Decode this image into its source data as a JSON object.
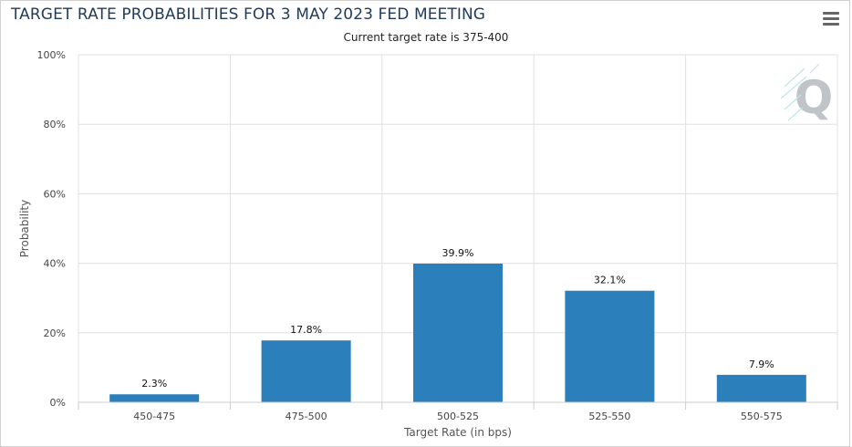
{
  "header": {
    "title": "TARGET RATE PROBABILITIES FOR 3 MAY 2023 FED MEETING",
    "subtitle": "Current target rate is 375-400",
    "menu_icon": "hamburger-menu-icon"
  },
  "watermark": {
    "letter": "Q",
    "color": "#c0c4c8"
  },
  "colors": {
    "bar": "#2b7fba",
    "grid": "#e0e0e0",
    "axis": "#cccccc"
  },
  "chart_data": {
    "type": "bar",
    "categories": [
      "450-475",
      "475-500",
      "500-525",
      "525-550",
      "550-575"
    ],
    "values": [
      2.3,
      17.8,
      39.9,
      32.1,
      7.9
    ],
    "data_labels": [
      "2.3%",
      "17.8%",
      "39.9%",
      "32.1%",
      "7.9%"
    ],
    "y_ticks": [
      0,
      20,
      40,
      60,
      80,
      100
    ],
    "y_tick_labels": [
      "0%",
      "20%",
      "40%",
      "60%",
      "80%",
      "100%"
    ],
    "ylim": [
      0,
      100
    ],
    "xlabel": "Target Rate (in bps)",
    "ylabel": "Probability",
    "grid": true,
    "legend": false
  }
}
